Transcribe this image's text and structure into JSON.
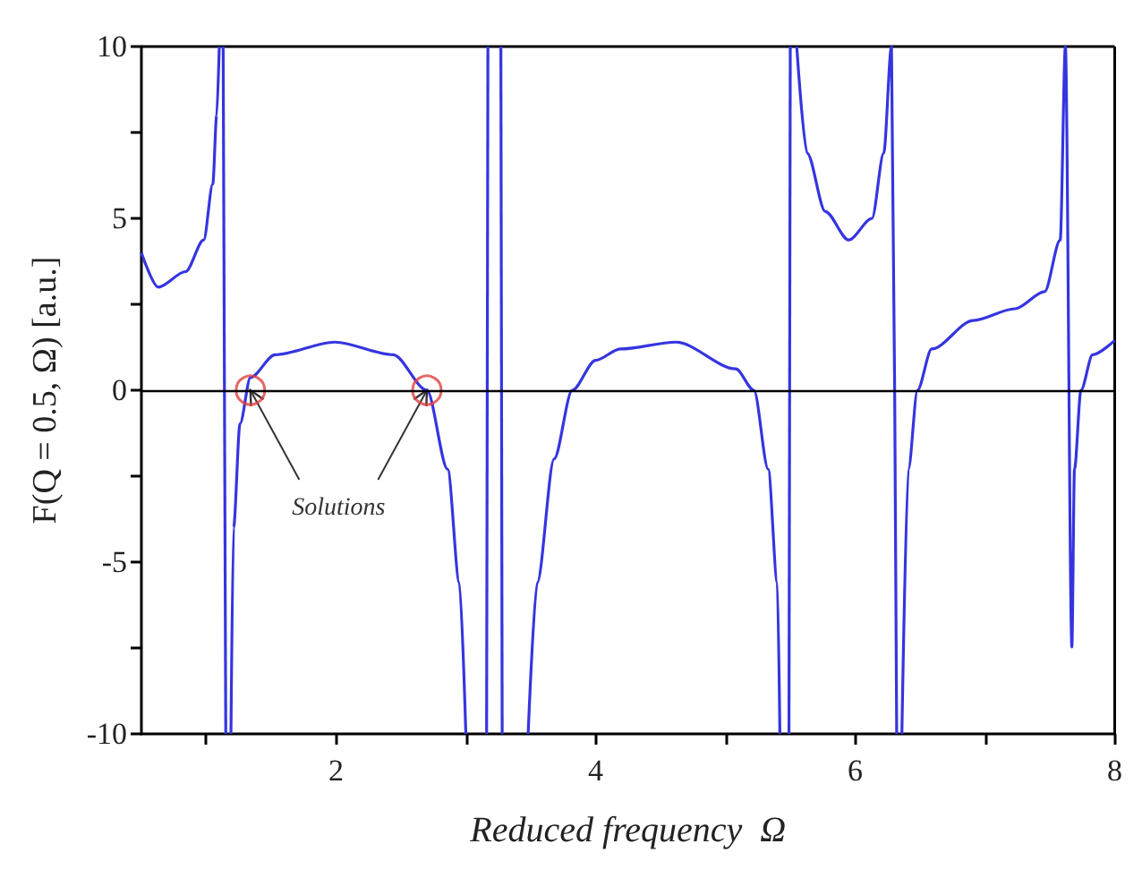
{
  "chart_data": {
    "type": "line",
    "xlabel": "Reduced frequency  Ω",
    "ylabel": "F(Q = 0.5, Ω) [a.u.]",
    "xlim": [
      0.5,
      8
    ],
    "ylim": [
      -10,
      10
    ],
    "xticks": [
      {
        "value": 1,
        "label": null
      },
      2,
      {
        "value": 3,
        "label": null
      },
      4,
      {
        "value": 5,
        "label": null
      },
      6,
      {
        "value": 7,
        "label": null
      },
      8
    ],
    "yticks": [
      -10,
      {
        "value": -7.5,
        "label": null
      },
      -5,
      {
        "value": -2.5,
        "label": null
      },
      0,
      {
        "value": 2.5,
        "label": null
      },
      5,
      {
        "value": 7.5,
        "label": null
      },
      10
    ],
    "grid": false,
    "line_style": "solid",
    "series": [
      {
        "color": "#3535e0",
        "marker": "none",
        "x": [
          0.5,
          0.63,
          0.84,
          0.98,
          1.05,
          1.08,
          1.1
        ],
        "values": [
          4.0,
          3.0,
          3.45,
          4.37,
          6.0,
          8.0,
          10
        ]
      },
      {
        "color": "#3535e0",
        "marker": "none",
        "x": [
          1.13,
          1.15
        ],
        "values": [
          10,
          -10
        ]
      },
      {
        "color": "#3535e0",
        "marker": "none",
        "x": [
          1.19,
          1.21,
          1.26,
          1.34,
          1.53,
          1.99,
          2.44,
          2.7,
          2.86,
          2.95,
          3.0
        ],
        "values": [
          -10,
          -4.0,
          -0.97,
          0.37,
          1.03,
          1.4,
          1.03,
          0,
          -2.3,
          -5.6,
          -10
        ]
      },
      {
        "color": "#3535e0",
        "marker": "none",
        "x": [
          3.16,
          3.17
        ],
        "values": [
          -10,
          10
        ]
      },
      {
        "color": "#3535e0",
        "marker": "none",
        "x": [
          3.27,
          3.28
        ],
        "values": [
          10,
          -10
        ]
      },
      {
        "color": "#3535e0",
        "marker": "none",
        "x": [
          3.48,
          3.55,
          3.68,
          3.82,
          4.0,
          4.19,
          4.62,
          5.08,
          5.22,
          5.33,
          5.4,
          5.42
        ],
        "values": [
          -10,
          -5.6,
          -2.0,
          0,
          0.87,
          1.2,
          1.4,
          0.62,
          0,
          -2.3,
          -5.6,
          -10
        ]
      },
      {
        "color": "#3535e0",
        "marker": "none",
        "x": [
          5.49,
          5.5
        ],
        "values": [
          -10,
          10
        ]
      },
      {
        "color": "#3535e0",
        "marker": "none",
        "x": [
          5.55,
          5.63,
          5.77,
          5.95,
          6.13,
          6.22,
          6.28,
          6.32
        ],
        "values": [
          10,
          6.9,
          5.2,
          4.37,
          5.0,
          6.9,
          10,
          -10
        ]
      },
      {
        "color": "#3535e0",
        "marker": "none",
        "x": [
          6.36,
          6.41,
          6.48,
          6.59,
          6.91,
          7.23,
          7.46,
          7.58,
          7.62,
          7.67,
          7.69,
          7.74,
          7.83,
          8.0
        ],
        "values": [
          -10,
          -2.3,
          0,
          1.2,
          2.03,
          2.37,
          2.87,
          4.37,
          10,
          -7.47,
          -2.3,
          0,
          1.03,
          1.45
        ]
      },
      {
        "type": "scatter",
        "color": "#e04040",
        "marker": "circle",
        "x": [
          1.34,
          2.7
        ],
        "values": [
          0,
          0
        ]
      }
    ],
    "ref_lines": [
      {
        "axis": "y",
        "value": 0,
        "color": "#000000"
      }
    ],
    "annotations": [
      {
        "text": "Solutions",
        "x": 1.34,
        "y": 0
      }
    ]
  }
}
